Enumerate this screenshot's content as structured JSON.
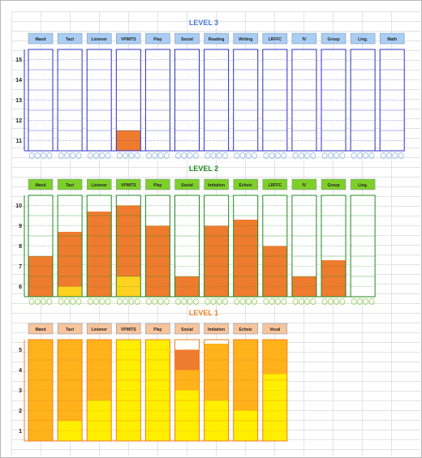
{
  "chart_data": [
    {
      "type": "bar",
      "title": "LEVEL 3",
      "title_color": "#4a7bd6",
      "header_color": "#a9cdf3",
      "border_color": "#2f2fc8",
      "categories": [
        "Mand",
        "Tact",
        "Listener",
        "VP/MTS",
        "Play",
        "Social",
        "Reading",
        "Writing",
        "LRFFC",
        "IV",
        "Group",
        "Ling.",
        "Math"
      ],
      "y_ticks": [
        "15",
        "14",
        "13",
        "12",
        "11"
      ],
      "ylim": [
        10.5,
        15.5
      ],
      "series": [
        {
          "color": "#ef7b2e",
          "values": [
            0,
            0,
            0,
            1.0,
            0,
            0,
            0,
            0,
            0,
            0,
            0,
            0,
            0
          ]
        }
      ],
      "footer_marks": true
    },
    {
      "type": "bar",
      "title": "LEVEL 2",
      "title_color": "#1d8a1d",
      "header_color": "#7fcf2a",
      "border_color": "#1f8a1f",
      "categories": [
        "Mand",
        "Tact",
        "Listener",
        "VP/MTS",
        "Play",
        "Social",
        "Imitation",
        "Echoic",
        "LRFFC",
        "IV",
        "Group",
        "Ling."
      ],
      "y_ticks": [
        "10",
        "9",
        "8",
        "7",
        "6"
      ],
      "ylim": [
        5.5,
        10.5
      ],
      "series": [
        {
          "color": "#ffd21f",
          "values": [
            0,
            0.5,
            0,
            1.0,
            0,
            0,
            0,
            0,
            0,
            0,
            0,
            0
          ]
        },
        {
          "color": "#ef7b2e",
          "values": [
            2.0,
            2.7,
            4.2,
            3.5,
            3.5,
            1.0,
            3.5,
            3.8,
            2.5,
            1.0,
            1.8,
            0
          ]
        }
      ],
      "footer_marks": true
    },
    {
      "type": "bar",
      "title": "LEVEL 1",
      "title_color": "#f07f22",
      "header_color": "#f7c49c",
      "border_color": "#f07f22",
      "categories": [
        "Mand",
        "Tact",
        "Listener",
        "VP/MTS",
        "Play",
        "Social",
        "Imitation",
        "Echoic",
        "Vocal"
      ],
      "y_ticks": [
        "5",
        "4",
        "3",
        "2",
        "1"
      ],
      "ylim": [
        0.5,
        5.5
      ],
      "series": [
        {
          "color": "#ffee00",
          "values": [
            0,
            1.0,
            2.0,
            5.0,
            5.0,
            2.5,
            2.0,
            1.5,
            3.3
          ]
        },
        {
          "color": "#ffb21a",
          "values": [
            5.0,
            4.0,
            3.0,
            0,
            0,
            1.0,
            2.8,
            3.5,
            1.7
          ]
        },
        {
          "color": "#ef7b2e",
          "values": [
            0,
            0,
            0,
            0,
            0,
            1.0,
            0,
            0,
            0
          ]
        }
      ],
      "footer_marks": false
    }
  ]
}
